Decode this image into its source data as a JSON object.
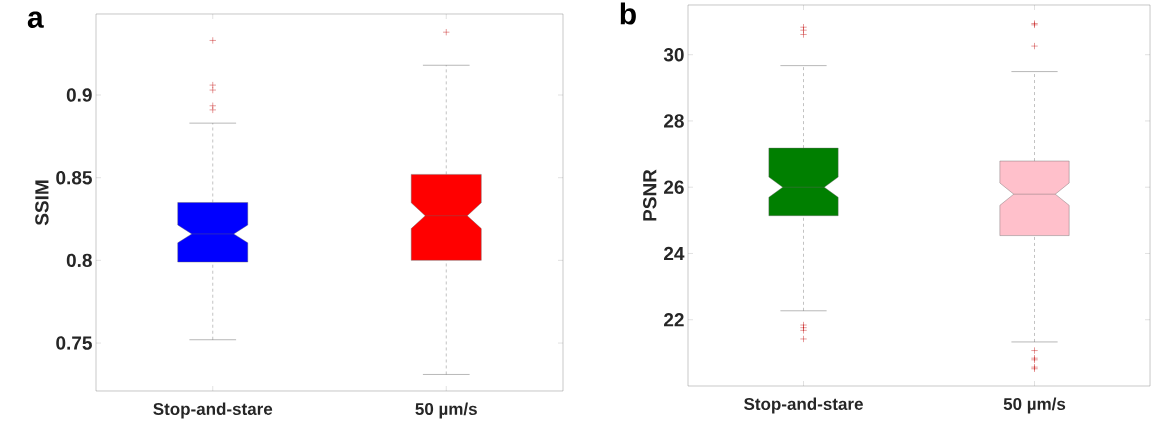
{
  "chart_data": [
    {
      "type": "box",
      "title": "a",
      "ylabel": "SSIM",
      "categories": [
        "Stop-and-stare",
        "50 µm/s"
      ],
      "colors": [
        "#0000ff",
        "#ff0000"
      ],
      "marker": "cross",
      "boxes": [
        {
          "low": 0.752,
          "q1": 0.799,
          "median": 0.816,
          "q3": 0.835,
          "high": 0.883,
          "outliers": [
            0.933,
            0.906,
            0.903,
            0.8935,
            0.891
          ]
        },
        {
          "low": 0.731,
          "q1": 0.8,
          "median": 0.827,
          "q3": 0.852,
          "high": 0.918,
          "outliers": [
            0.938
          ]
        }
      ],
      "ylim": [
        0.721,
        0.949
      ],
      "yticks": [
        0.75,
        0.8,
        0.85,
        0.9
      ]
    },
    {
      "type": "box",
      "title": "b",
      "ylabel": "PSNR",
      "categories": [
        "Stop-and-stare",
        "50 µm/s"
      ],
      "colors": [
        "#007f00",
        "#ffc0cb"
      ],
      "marker": "cross",
      "boxes": [
        {
          "low": 22.27,
          "q1": 25.14,
          "median": 26.0,
          "q3": 27.18,
          "high": 29.67,
          "outliers": [
            30.83,
            30.74,
            30.61,
            21.84,
            21.76,
            21.68,
            21.42
          ]
        },
        {
          "low": 21.33,
          "q1": 24.54,
          "median": 25.79,
          "q3": 26.79,
          "high": 29.49,
          "outliers": [
            30.94,
            30.9,
            30.26,
            21.07,
            20.84,
            20.79,
            20.57,
            20.52
          ]
        }
      ],
      "ylim": [
        20.0,
        31.5
      ],
      "yticks": [
        22,
        24,
        26,
        28,
        30
      ]
    }
  ]
}
